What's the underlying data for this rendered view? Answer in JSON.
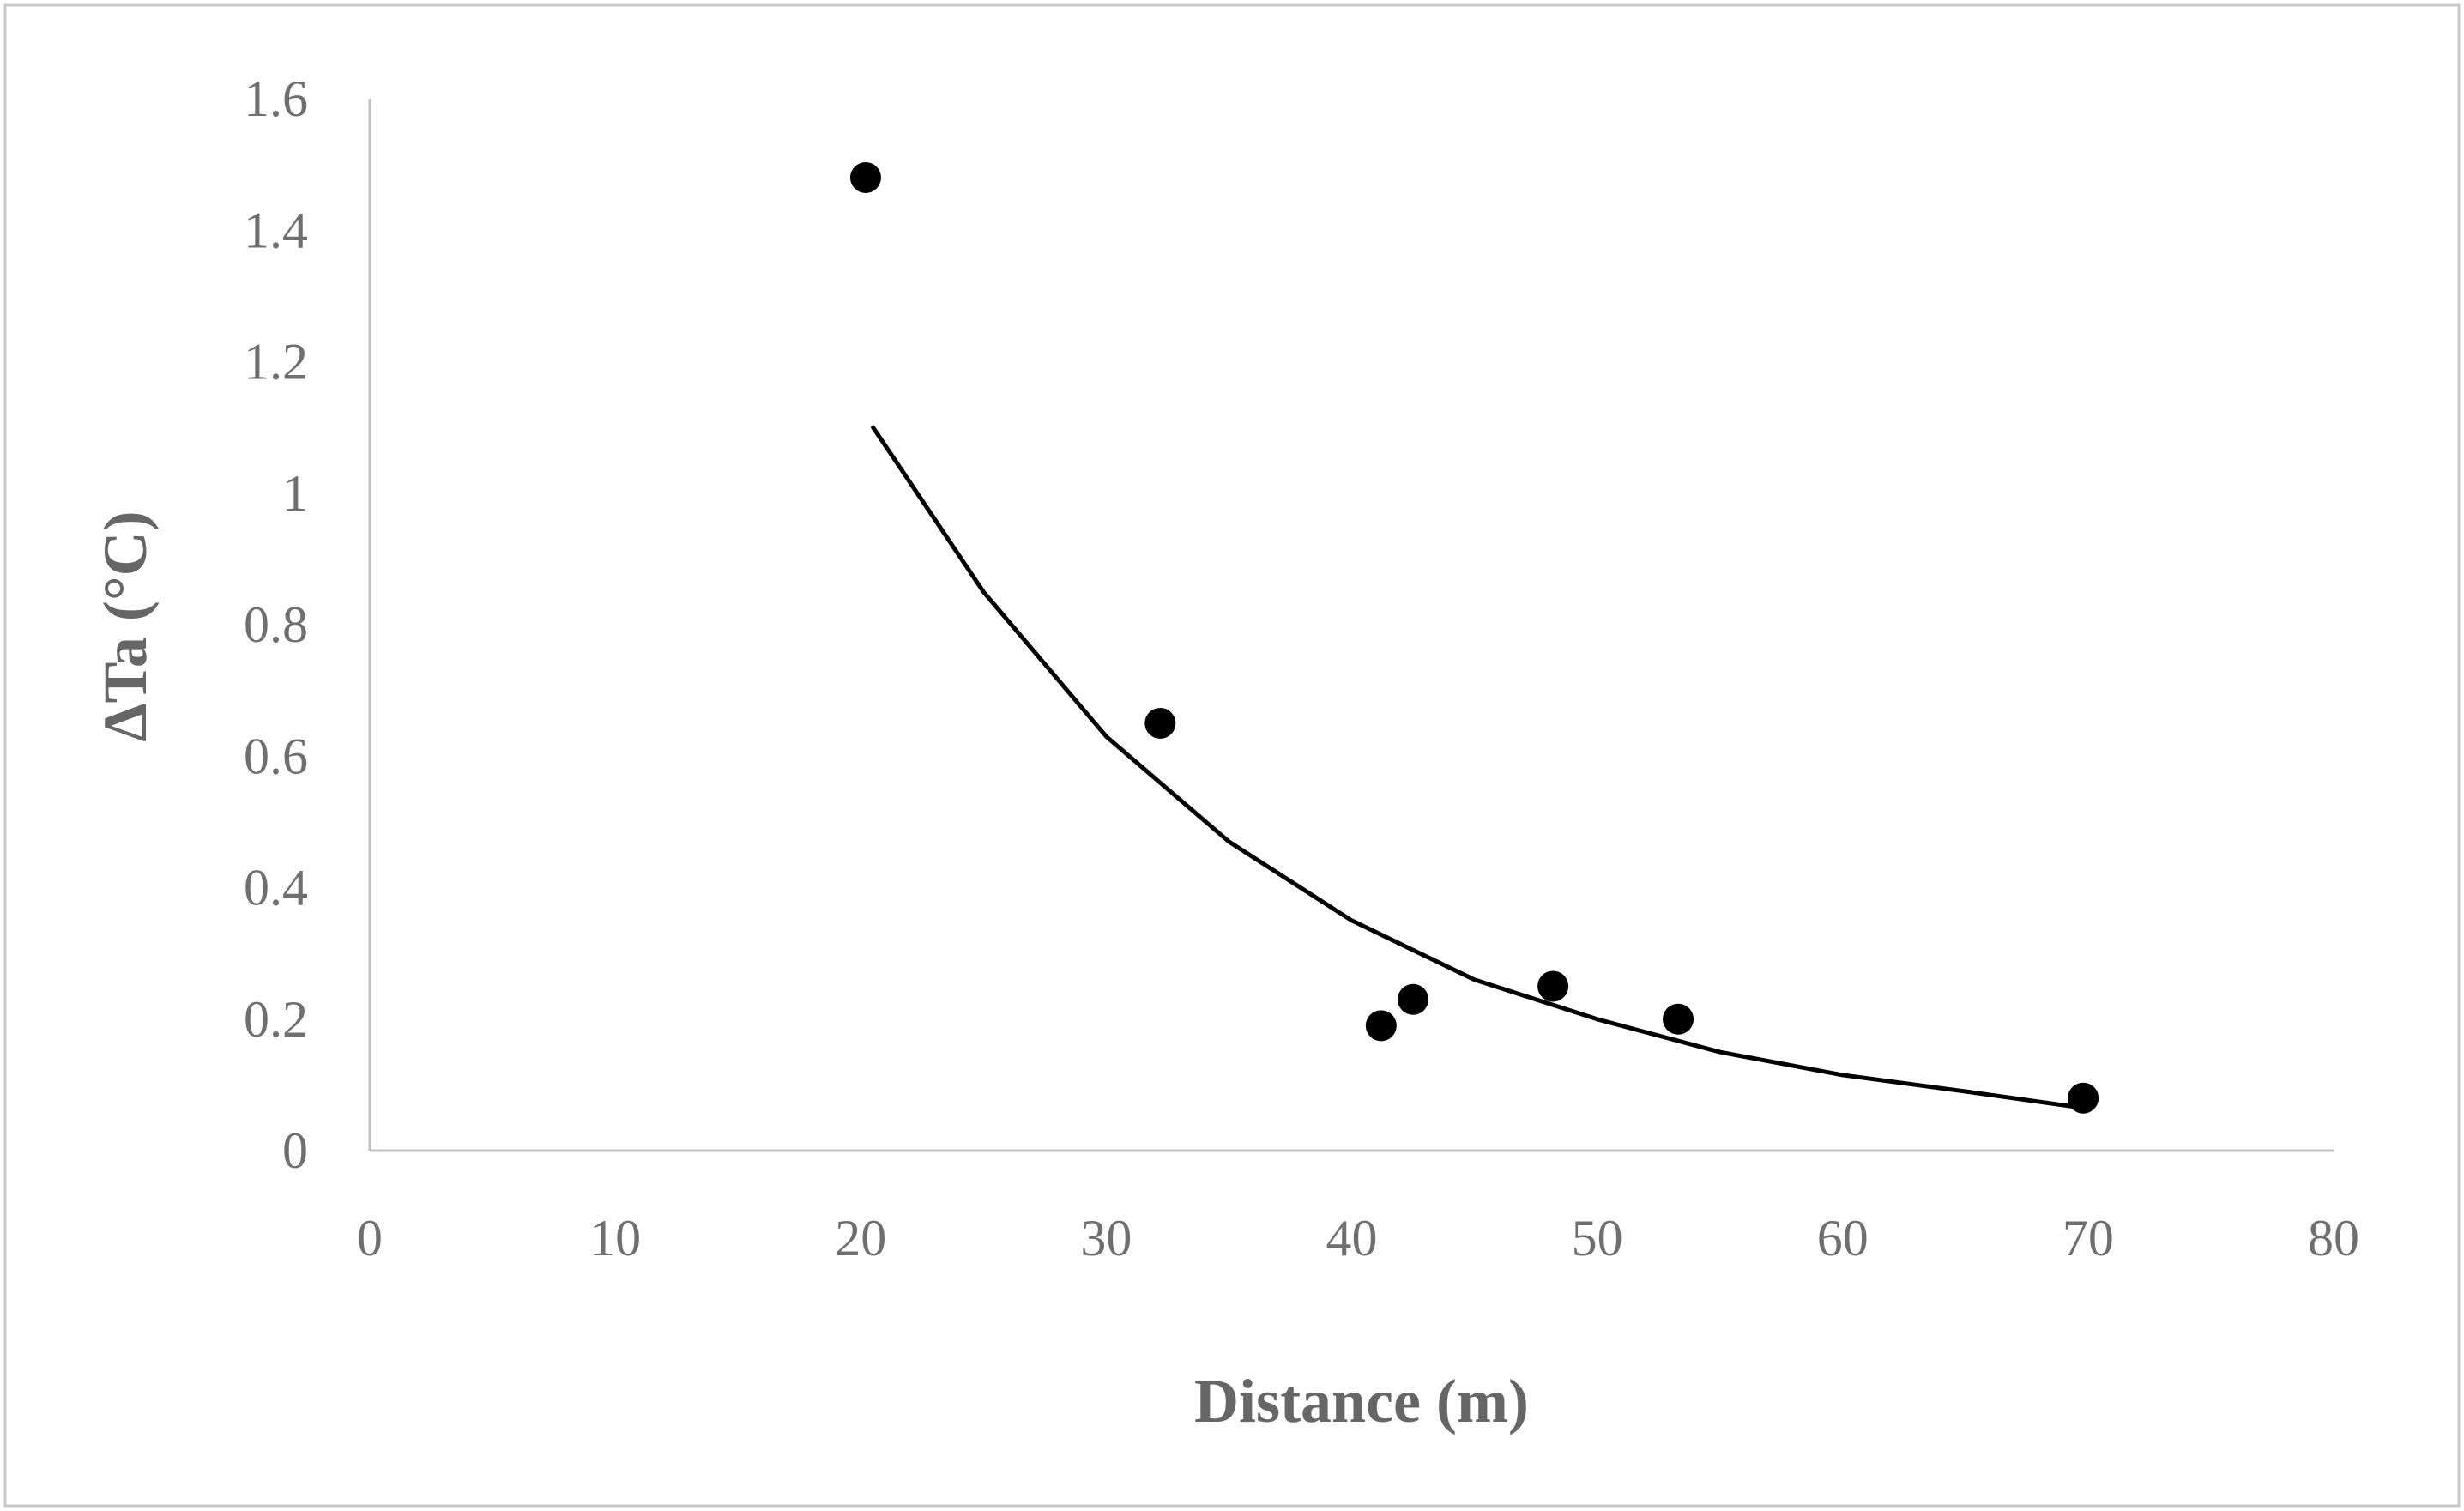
{
  "chart_data": {
    "type": "scatter",
    "title": "",
    "xlabel": "Distance (m)",
    "ylabel": "ΔTa (°C)",
    "xlim": [
      0,
      80
    ],
    "ylim": [
      0,
      1.6
    ],
    "x_ticks": [
      "0",
      "10",
      "20",
      "30",
      "40",
      "50",
      "60",
      "70",
      "80"
    ],
    "y_ticks": [
      "0",
      "0.2",
      "0.4",
      "0.6",
      "0.8",
      "1",
      "1.2",
      "1.4",
      "1.6"
    ],
    "grid": false,
    "legend": "none",
    "series": [
      {
        "marker": "circle",
        "color": "#000000",
        "points": [
          {
            "x": 20.2,
            "y": 1.48
          },
          {
            "x": 32.2,
            "y": 0.65
          },
          {
            "x": 41.2,
            "y": 0.19
          },
          {
            "x": 42.5,
            "y": 0.23
          },
          {
            "x": 48.2,
            "y": 0.25
          },
          {
            "x": 53.3,
            "y": 0.2
          },
          {
            "x": 69.8,
            "y": 0.08
          }
        ]
      }
    ],
    "trendline": {
      "type": "exponential",
      "color": "#000000",
      "x_range": [
        20.5,
        69.8
      ],
      "points": [
        {
          "x": 20.5,
          "y": 1.1
        },
        {
          "x": 25,
          "y": 0.85
        },
        {
          "x": 30,
          "y": 0.63
        },
        {
          "x": 35,
          "y": 0.47
        },
        {
          "x": 40,
          "y": 0.35
        },
        {
          "x": 45,
          "y": 0.26
        },
        {
          "x": 50,
          "y": 0.2
        },
        {
          "x": 55,
          "y": 0.15
        },
        {
          "x": 60,
          "y": 0.115
        },
        {
          "x": 65,
          "y": 0.09
        },
        {
          "x": 69.8,
          "y": 0.065
        }
      ]
    }
  }
}
